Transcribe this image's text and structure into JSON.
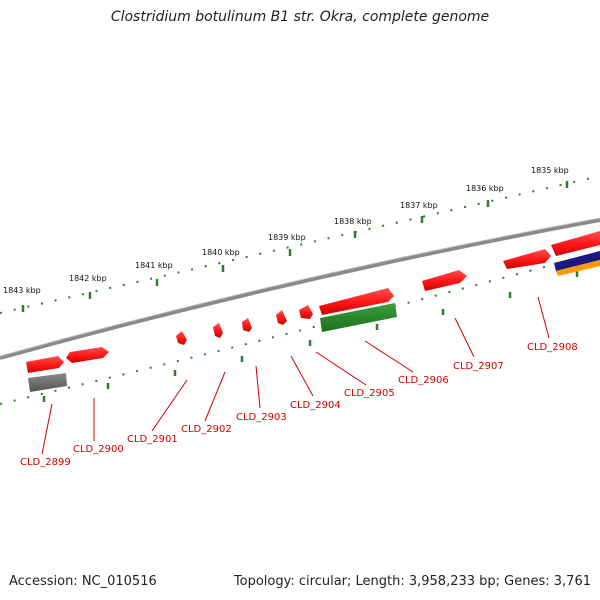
{
  "title": "Clostridium botulinum B1 str. Okra, complete genome",
  "footer": {
    "accession": "Accession: NC_010516",
    "summary": "Topology: circular; Length: 3,958,233 bp; Genes: 3,761"
  },
  "kbp_ticks": [
    "1835 kbp",
    "1836 kbp",
    "1837 kbp",
    "1838 kbp",
    "1839 kbp",
    "1840 kbp",
    "1841 kbp",
    "1842 kbp",
    "1843 kbp"
  ],
  "gene_labels": [
    "CLD_2899",
    "CLD_2900",
    "CLD_2901",
    "CLD_2902",
    "CLD_2903",
    "CLD_2904",
    "CLD_2905",
    "CLD_2906",
    "CLD_2907",
    "CLD_2908"
  ],
  "colors": {
    "cds": "#ff1a1a",
    "rna": "#2e8b2e",
    "pseudo": "#707070",
    "backbone": "#8a8a8a",
    "ticks": "#2e7d2e",
    "navy": "#1a1a80",
    "orange": "#ff9900",
    "label": "#d00000"
  }
}
